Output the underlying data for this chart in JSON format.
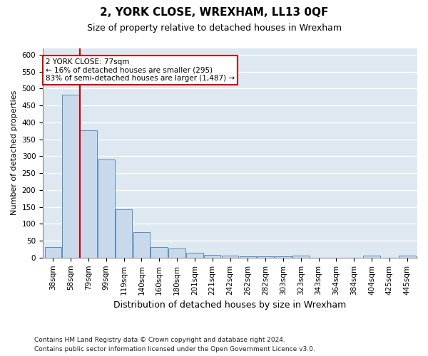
{
  "title": "2, YORK CLOSE, WREXHAM, LL13 0QF",
  "subtitle": "Size of property relative to detached houses in Wrexham",
  "xlabel": "Distribution of detached houses by size in Wrexham",
  "ylabel": "Number of detached properties",
  "footnote1": "Contains HM Land Registry data © Crown copyright and database right 2024.",
  "footnote2": "Contains public sector information licensed under the Open Government Licence v3.0.",
  "bin_labels": [
    "38sqm",
    "58sqm",
    "79sqm",
    "99sqm",
    "119sqm",
    "140sqm",
    "160sqm",
    "180sqm",
    "201sqm",
    "221sqm",
    "242sqm",
    "262sqm",
    "282sqm",
    "303sqm",
    "323sqm",
    "343sqm",
    "364sqm",
    "384sqm",
    "404sqm",
    "425sqm",
    "445sqm"
  ],
  "bar_values": [
    32,
    483,
    376,
    291,
    143,
    75,
    31,
    28,
    15,
    8,
    5,
    4,
    4,
    4,
    5,
    0,
    0,
    0,
    5,
    0,
    5
  ],
  "bar_color": "#c9d9ec",
  "bar_edge_color": "#5b8db8",
  "vline_x_bin": 2,
  "property_line_label": "2 YORK CLOSE: 77sqm",
  "annotation_line1": "← 16% of detached houses are smaller (295)",
  "annotation_line2": "83% of semi-detached houses are larger (1,487) →",
  "annotation_box_facecolor": "#ffffff",
  "annotation_box_edgecolor": "#cc0000",
  "vline_color": "#cc0000",
  "ylim": [
    0,
    620
  ],
  "yticks": [
    0,
    50,
    100,
    150,
    200,
    250,
    300,
    350,
    400,
    450,
    500,
    550,
    600
  ],
  "fig_bg": "#ffffff",
  "axes_bg": "#dde8f0",
  "grid_color": "#ffffff",
  "title_fontsize": 11,
  "subtitle_fontsize": 9,
  "tick_fontsize": 7.5,
  "ylabel_fontsize": 8,
  "xlabel_fontsize": 9,
  "footnote_fontsize": 6.5
}
